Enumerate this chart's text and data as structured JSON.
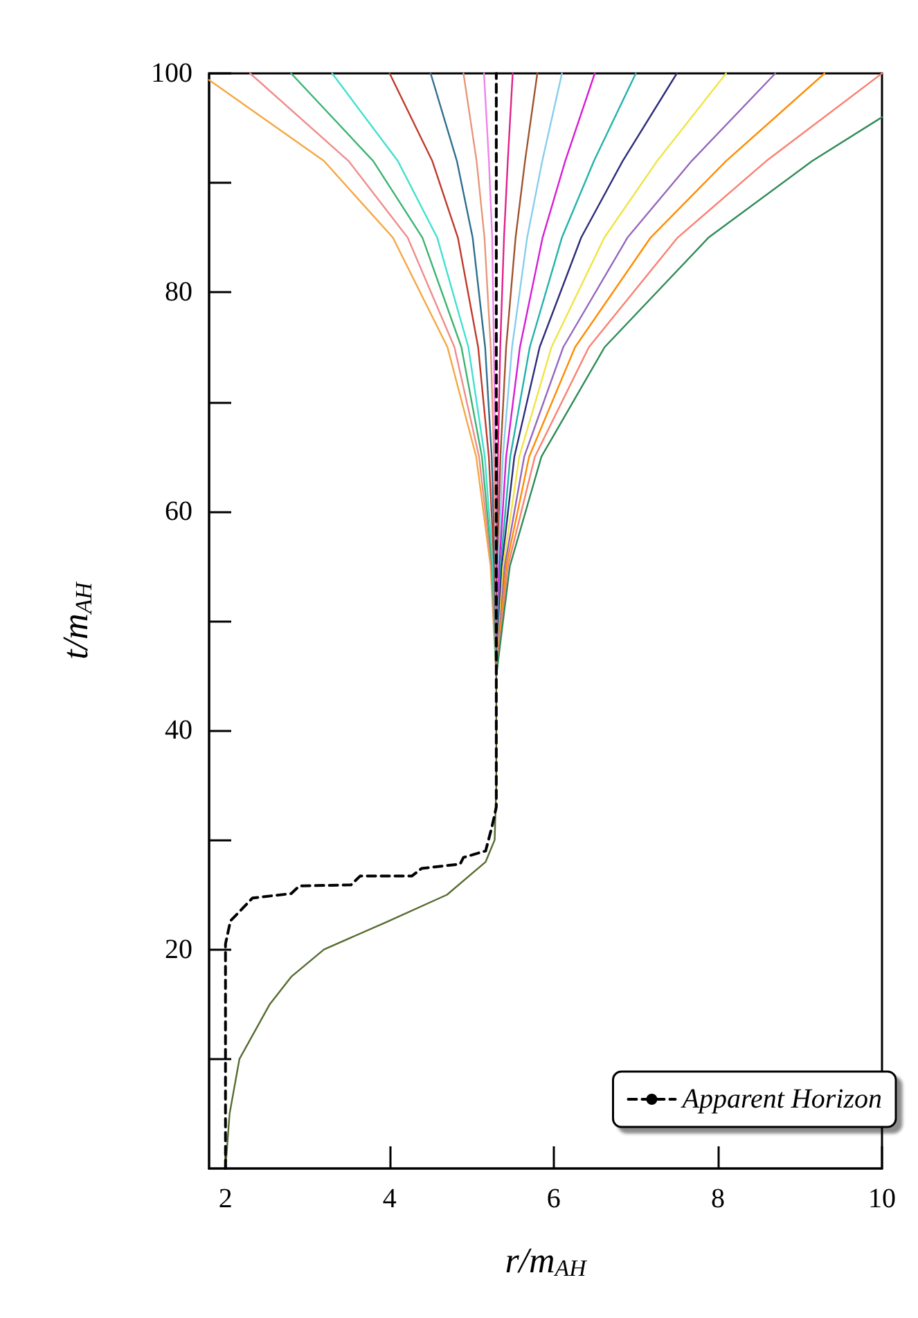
{
  "chart_data": {
    "type": "line",
    "xlabel": "r/m$_{AH}$",
    "ylabel": "t/m$_{AH}$",
    "xlim": [
      1.8,
      10
    ],
    "xticks": [
      2,
      4,
      6,
      8,
      10
    ],
    "ylim": [
      0,
      100
    ],
    "yticks": [
      {
        "value": 10,
        "label": null
      },
      20,
      {
        "value": 30,
        "label": null
      },
      40,
      {
        "value": 50,
        "label": null
      },
      60,
      {
        "value": 70,
        "label": null
      },
      80,
      {
        "value": 90,
        "label": null
      },
      100
    ],
    "grid": false,
    "legend": "bottom right",
    "series": [
      {
        "color": "#556b2f",
        "x": [
          2.0,
          2.05,
          2.17,
          2.54,
          2.8,
          3.2,
          3.96,
          4.7,
          5.17,
          5.28,
          5.3,
          5.3
        ],
        "values": [
          0,
          5,
          10,
          15,
          17.5,
          20,
          22.5,
          25,
          28,
          30,
          35,
          45
        ]
      },
      {
        "color": "#f5a742",
        "x": [
          5.3,
          5.23,
          5.055,
          4.705,
          4.04,
          3.2,
          1.8
        ],
        "values": [
          45,
          55,
          65,
          75,
          85,
          92,
          99.4
        ]
      },
      {
        "color": "#f08c8c",
        "x": [
          5.3,
          5.24,
          5.09,
          4.79,
          4.22,
          3.5,
          2.3
        ],
        "values": [
          45,
          55,
          65,
          75,
          85,
          92,
          100
        ]
      },
      {
        "color": "#3cb371",
        "x": [
          5.3,
          5.25,
          5.125,
          4.875,
          4.4,
          3.8,
          2.8
        ],
        "values": [
          45,
          55,
          65,
          75,
          85,
          92,
          100
        ]
      },
      {
        "color": "#40e0d0",
        "x": [
          5.3,
          5.26,
          5.16,
          4.96,
          4.58,
          4.1,
          3.3
        ],
        "values": [
          45,
          55,
          65,
          75,
          85,
          92,
          100
        ]
      },
      {
        "color": "#c0392b",
        "x": [
          5.3,
          5.274,
          5.209,
          5.079,
          4.832,
          4.52,
          4.0
        ],
        "values": [
          45,
          55,
          65,
          75,
          85,
          92,
          100
        ]
      },
      {
        "color": "#2e6f8e",
        "x": [
          5.3,
          5.284,
          5.244,
          5.164,
          5.012,
          4.82,
          4.5
        ],
        "values": [
          45,
          55,
          65,
          75,
          85,
          92,
          100
        ]
      },
      {
        "color": "#e9967a",
        "x": [
          5.3,
          5.292,
          5.272,
          5.232,
          5.156,
          5.06,
          4.9
        ],
        "values": [
          45,
          55,
          65,
          75,
          85,
          92,
          100
        ]
      },
      {
        "color": "#ee82ee",
        "x": [
          5.3,
          5.3,
          5.29,
          5.27,
          5.25,
          5.21,
          5.15
        ],
        "values": [
          45,
          55,
          65,
          75,
          85,
          92,
          100
        ]
      },
      {
        "color": "#e0218a",
        "x": [
          5.3,
          5.306,
          5.32,
          5.348,
          5.394,
          5.44,
          5.5
        ],
        "values": [
          45,
          55,
          65,
          75,
          85,
          92,
          100
        ]
      },
      {
        "color": "#a0522d",
        "x": [
          5.3,
          5.315,
          5.35,
          5.42,
          5.535,
          5.65,
          5.8
        ],
        "values": [
          45,
          55,
          65,
          75,
          85,
          92,
          100
        ]
      },
      {
        "color": "#87ceeb",
        "x": [
          5.3,
          5.324,
          5.38,
          5.492,
          5.676,
          5.86,
          6.1
        ],
        "values": [
          45,
          55,
          65,
          75,
          85,
          92,
          100
        ]
      },
      {
        "color": "#d81bd8",
        "x": [
          5.3,
          5.336,
          5.42,
          5.588,
          5.864,
          6.14,
          6.5
        ],
        "values": [
          45,
          55,
          65,
          75,
          85,
          92,
          100
        ]
      },
      {
        "color": "#20b2aa",
        "x": [
          5.3,
          5.351,
          5.47,
          5.708,
          6.099,
          6.49,
          7.0
        ],
        "values": [
          45,
          55,
          65,
          75,
          85,
          92,
          100
        ]
      },
      {
        "color": "#2c2c7a",
        "x": [
          5.3,
          5.366,
          5.52,
          5.828,
          6.334,
          6.84,
          7.5
        ],
        "values": [
          45,
          55,
          65,
          75,
          85,
          92,
          100
        ]
      },
      {
        "color": "#f0e442",
        "x": [
          5.3,
          5.384,
          5.58,
          5.972,
          6.616,
          7.26,
          8.1
        ],
        "values": [
          45,
          55,
          65,
          75,
          85,
          92,
          100
        ]
      },
      {
        "color": "#9467bd",
        "x": [
          5.3,
          5.402,
          5.64,
          6.116,
          6.898,
          7.68,
          8.7
        ],
        "values": [
          45,
          55,
          65,
          75,
          85,
          92,
          100
        ]
      },
      {
        "color": "#ff8c00",
        "x": [
          5.3,
          5.42,
          5.7,
          6.26,
          7.18,
          8.1,
          9.3
        ],
        "values": [
          45,
          55,
          65,
          75,
          85,
          92,
          100
        ]
      },
      {
        "color": "#fa8072",
        "x": [
          5.3,
          5.441,
          5.77,
          6.428,
          7.509,
          8.59,
          10.0
        ],
        "values": [
          45,
          55,
          65,
          75,
          85,
          92,
          100
        ]
      },
      {
        "color": "#2e8b57",
        "x": [
          5.3,
          5.465,
          5.85,
          6.62,
          7.885,
          9.15,
          10.0
        ],
        "values": [
          45,
          55,
          65,
          75,
          85,
          92,
          96
        ]
      },
      {
        "name": "Apparent Horizon",
        "color": "#000000",
        "line_style": "dashed",
        "x": [
          2.0,
          2.0,
          2.06,
          2.33,
          2.8,
          2.9,
          3.53,
          3.64,
          4.27,
          4.39,
          4.86,
          4.9,
          5.17,
          5.25,
          5.3,
          5.3
        ],
        "values": [
          0,
          20.5,
          22.6,
          24.7,
          25.1,
          25.8,
          25.9,
          26.7,
          26.7,
          27.4,
          27.8,
          28.4,
          29,
          31.3,
          33,
          100
        ]
      }
    ]
  }
}
